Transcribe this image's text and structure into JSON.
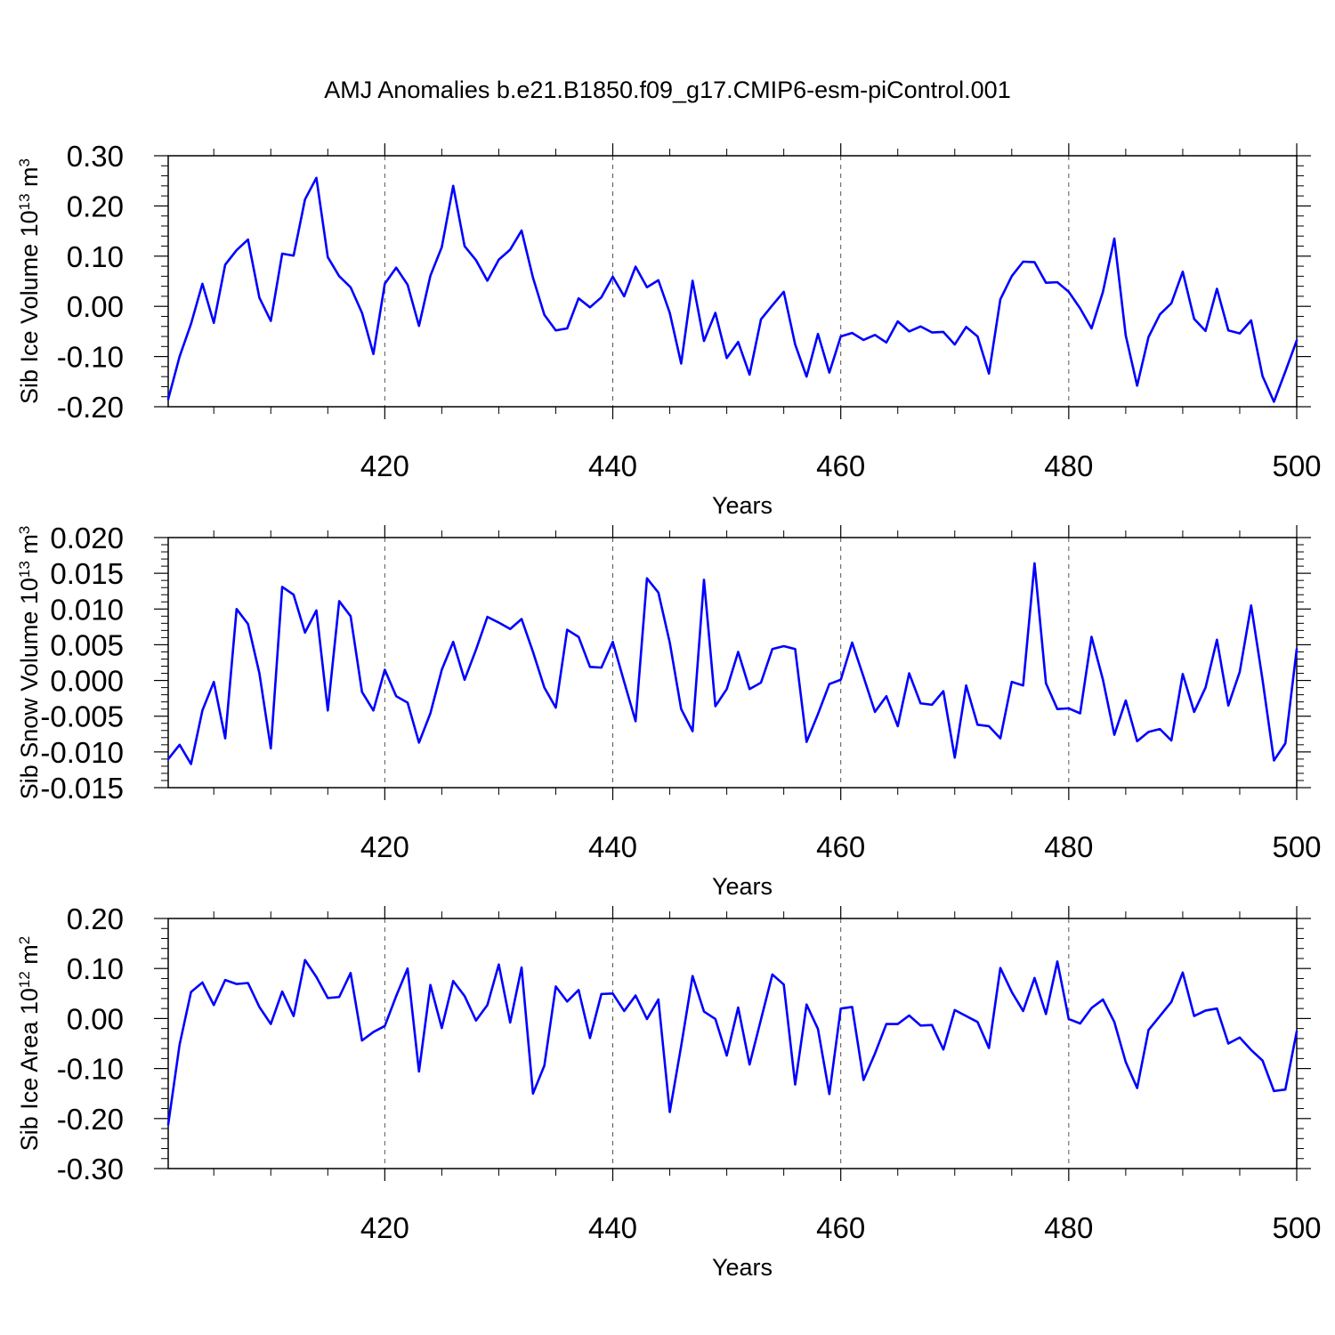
{
  "title": "AMJ Anomalies b.e21.B1850.f09_g17.CMIP6-esm-piControl.001",
  "chart_data": [
    {
      "type": "line",
      "ylabel": "Sib Ice Volume 10",
      "ylabel_sup": "13",
      "ylabel_unit": " m",
      "ylabel_unit_sup": "3",
      "xlabel": "Years",
      "xlim": [
        401,
        500
      ],
      "ylim": [
        -0.2,
        0.3
      ],
      "x_ticks": [
        420,
        440,
        460,
        480,
        500
      ],
      "x_tick_labels": [
        "420",
        "440",
        "460",
        "480",
        "500"
      ],
      "y_ticks": [
        -0.2,
        -0.1,
        0.0,
        0.1,
        0.2,
        0.3
      ],
      "y_tick_labels": [
        "-0.20",
        "-0.10",
        "0.00",
        "0.10",
        "0.20",
        "0.30"
      ],
      "gridlines_x": [
        420,
        440,
        460,
        480
      ],
      "color": "#0000ff",
      "x_start": 401,
      "values": [
        -0.185,
        -0.1,
        -0.035,
        0.045,
        -0.033,
        0.083,
        0.112,
        0.133,
        0.017,
        -0.029,
        0.105,
        0.101,
        0.213,
        0.256,
        0.098,
        0.06,
        0.038,
        -0.013,
        -0.095,
        0.045,
        0.077,
        0.043,
        -0.039,
        0.061,
        0.118,
        0.24,
        0.12,
        0.092,
        0.051,
        0.093,
        0.113,
        0.151,
        0.057,
        -0.017,
        -0.048,
        -0.044,
        0.016,
        -0.002,
        0.018,
        0.059,
        0.02,
        0.079,
        0.038,
        0.052,
        -0.013,
        -0.114,
        0.051,
        -0.069,
        -0.013,
        -0.103,
        -0.071,
        -0.136,
        -0.026,
        0.002,
        0.029,
        -0.076,
        -0.14,
        -0.055,
        -0.132,
        -0.06,
        -0.053,
        -0.067,
        -0.057,
        -0.072,
        -0.03,
        -0.05,
        -0.04,
        -0.052,
        -0.051,
        -0.076,
        -0.041,
        -0.06,
        -0.134,
        0.014,
        0.06,
        0.089,
        0.088,
        0.047,
        0.048,
        0.029,
        -0.004,
        -0.044,
        0.029,
        0.135,
        -0.058,
        -0.158,
        -0.061,
        -0.016,
        0.006,
        0.069,
        -0.025,
        -0.049,
        0.035,
        -0.048,
        -0.054,
        -0.028,
        -0.139,
        -0.19,
        -0.13,
        -0.068
      ]
    },
    {
      "type": "line",
      "ylabel": "Sib Snow Volume 10",
      "ylabel_sup": "13",
      "ylabel_unit": " m",
      "ylabel_unit_sup": "3",
      "xlabel": "Years",
      "xlim": [
        401,
        500
      ],
      "ylim": [
        -0.015,
        0.02
      ],
      "x_ticks": [
        420,
        440,
        460,
        480,
        500
      ],
      "x_tick_labels": [
        "420",
        "440",
        "460",
        "480",
        "500"
      ],
      "y_ticks": [
        -0.015,
        -0.01,
        -0.005,
        0.0,
        0.005,
        0.01,
        0.015,
        0.02
      ],
      "y_tick_labels": [
        "-0.015",
        "-0.010",
        "-0.005",
        "0.000",
        "0.005",
        "0.010",
        "0.015",
        "0.020"
      ],
      "gridlines_x": [
        420,
        440,
        460,
        480
      ],
      "color": "#0000ff",
      "x_start": 401,
      "values": [
        -0.011,
        -0.009,
        -0.0117,
        -0.0042,
        -0.0002,
        -0.0081,
        0.01,
        0.0079,
        0.001,
        -0.0095,
        0.0131,
        0.012,
        0.0067,
        0.0098,
        -0.0042,
        0.0111,
        0.009,
        -0.0016,
        -0.0042,
        0.0015,
        -0.0022,
        -0.0031,
        -0.0087,
        -0.0046,
        0.0015,
        0.0054,
        0.0001,
        0.0043,
        0.0089,
        0.0081,
        0.0072,
        0.0086,
        0.004,
        -0.001,
        -0.0038,
        0.0071,
        0.0061,
        0.0019,
        0.0018,
        0.0054,
        -0.0002,
        -0.0057,
        0.0143,
        0.0123,
        0.0053,
        -0.004,
        -0.0071,
        0.0141,
        -0.0036,
        -0.0012,
        0.004,
        -0.0012,
        -0.0003,
        0.0044,
        0.0048,
        0.0044,
        -0.0086,
        -0.0047,
        -0.0005,
        0.0001,
        0.0053,
        0.0005,
        -0.0044,
        -0.0022,
        -0.0064,
        0.001,
        -0.0032,
        -0.0034,
        -0.0015,
        -0.0108,
        -0.0007,
        -0.0062,
        -0.0064,
        -0.0081,
        -0.0002,
        -0.0007,
        0.0164,
        -0.0004,
        -0.004,
        -0.0039,
        -0.0046,
        0.0061,
        0.0001,
        -0.0076,
        -0.0028,
        -0.0085,
        -0.0072,
        -0.0068,
        -0.0084,
        0.0009,
        -0.0044,
        -0.001,
        0.0057,
        -0.0035,
        0.0012,
        0.0105,
        0.0001,
        -0.0112,
        -0.0088,
        0.0044
      ]
    },
    {
      "type": "line",
      "ylabel": "Sib Ice Area 10",
      "ylabel_sup": "12",
      "ylabel_unit": " m",
      "ylabel_unit_sup": "2",
      "xlabel": "Years",
      "xlim": [
        401,
        500
      ],
      "ylim": [
        -0.3,
        0.2
      ],
      "x_ticks": [
        420,
        440,
        460,
        480,
        500
      ],
      "x_tick_labels": [
        "420",
        "440",
        "460",
        "480",
        "500"
      ],
      "y_ticks": [
        -0.3,
        -0.2,
        -0.1,
        0.0,
        0.1,
        0.2
      ],
      "y_tick_labels": [
        "-0.30",
        "-0.20",
        "-0.10",
        "0.00",
        "0.10",
        "0.20"
      ],
      "gridlines_x": [
        420,
        440,
        460,
        480
      ],
      "color": "#0000ff",
      "x_start": 401,
      "values": [
        -0.212,
        -0.052,
        0.053,
        0.072,
        0.027,
        0.077,
        0.069,
        0.071,
        0.023,
        -0.011,
        0.054,
        0.005,
        0.117,
        0.083,
        0.041,
        0.043,
        0.091,
        -0.044,
        -0.027,
        -0.015,
        0.045,
        0.1,
        -0.106,
        0.067,
        -0.019,
        0.075,
        0.045,
        -0.004,
        0.027,
        0.108,
        -0.008,
        0.102,
        -0.15,
        -0.094,
        0.064,
        0.034,
        0.057,
        -0.039,
        0.049,
        0.05,
        0.015,
        0.046,
        -0.001,
        0.038,
        -0.187,
        -0.055,
        0.085,
        0.014,
        -0.001,
        -0.074,
        0.022,
        -0.092,
        -0.002,
        0.088,
        0.068,
        -0.132,
        0.028,
        -0.021,
        -0.151,
        0.02,
        0.023,
        -0.123,
        -0.07,
        -0.011,
        -0.011,
        0.006,
        -0.014,
        -0.013,
        -0.062,
        0.017,
        0.005,
        -0.007,
        -0.059,
        0.101,
        0.053,
        0.015,
        0.081,
        0.009,
        0.114,
        -0.001,
        -0.01,
        0.021,
        0.038,
        -0.007,
        -0.087,
        -0.139,
        -0.023,
        0.005,
        0.033,
        0.092,
        0.005,
        0.016,
        0.02,
        -0.05,
        -0.038,
        -0.063,
        -0.084,
        -0.145,
        -0.142,
        -0.026
      ]
    }
  ]
}
